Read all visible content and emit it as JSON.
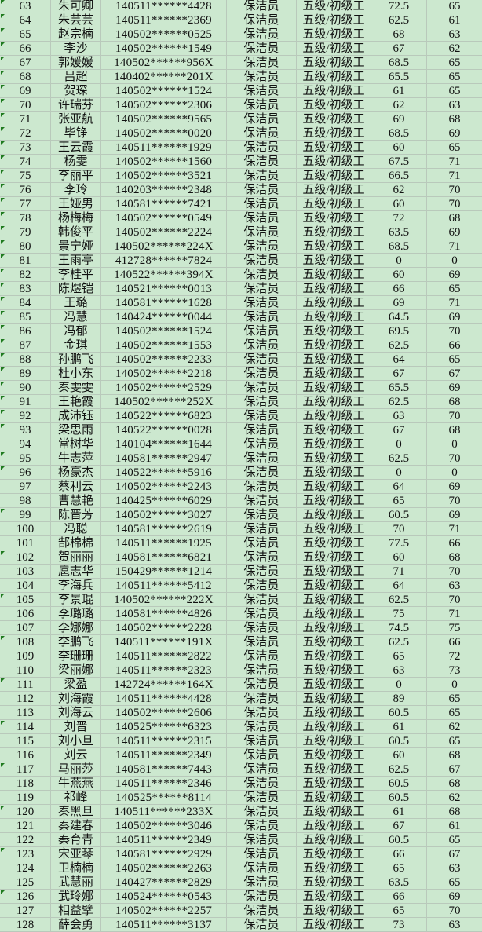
{
  "colors": {
    "cell_fill": "#cce8cf",
    "gridline": "#b9c9bb",
    "error_indicator": "#1f7a1f"
  },
  "rows": [
    {
      "no": "63",
      "name": "朱可卿",
      "id": "140511******4428",
      "job": "保洁员",
      "level": "五级/初级工",
      "score1": "72.5",
      "score2": "65",
      "marker": true
    },
    {
      "no": "64",
      "name": "朱芸芸",
      "id": "140511******2369",
      "job": "保洁员",
      "level": "五级/初级工",
      "score1": "62.5",
      "score2": "61",
      "marker": true
    },
    {
      "no": "65",
      "name": "赵宗楠",
      "id": "140502******0525",
      "job": "保洁员",
      "level": "五级/初级工",
      "score1": "68",
      "score2": "63",
      "marker": true
    },
    {
      "no": "66",
      "name": "李沙",
      "id": "140502******1549",
      "job": "保洁员",
      "level": "五级/初级工",
      "score1": "67",
      "score2": "62",
      "marker": true
    },
    {
      "no": "67",
      "name": "郭媛媛",
      "id": "140502******956X",
      "job": "保洁员",
      "level": "五级/初级工",
      "score1": "68.5",
      "score2": "65",
      "marker": true
    },
    {
      "no": "68",
      "name": "吕超",
      "id": "140402******201X",
      "job": "保洁员",
      "level": "五级/初级工",
      "score1": "65.5",
      "score2": "65",
      "marker": true
    },
    {
      "no": "69",
      "name": "贺琛",
      "id": "140502******1524",
      "job": "保洁员",
      "level": "五级/初级工",
      "score1": "61",
      "score2": "65",
      "marker": true
    },
    {
      "no": "70",
      "name": "许瑞芬",
      "id": "140502******2306",
      "job": "保洁员",
      "level": "五级/初级工",
      "score1": "62",
      "score2": "63",
      "marker": true
    },
    {
      "no": "71",
      "name": "张亚航",
      "id": "140502******9565",
      "job": "保洁员",
      "level": "五级/初级工",
      "score1": "69",
      "score2": "68",
      "marker": true
    },
    {
      "no": "72",
      "name": "毕铮",
      "id": "140502******0020",
      "job": "保洁员",
      "level": "五级/初级工",
      "score1": "68.5",
      "score2": "69",
      "marker": true
    },
    {
      "no": "73",
      "name": "王云霞",
      "id": "140511******1929",
      "job": "保洁员",
      "level": "五级/初级工",
      "score1": "60",
      "score2": "65",
      "marker": true
    },
    {
      "no": "74",
      "name": "杨雯",
      "id": "140502******1560",
      "job": "保洁员",
      "level": "五级/初级工",
      "score1": "67.5",
      "score2": "71",
      "marker": true
    },
    {
      "no": "75",
      "name": "李丽平",
      "id": "140502******3521",
      "job": "保洁员",
      "level": "五级/初级工",
      "score1": "66.5",
      "score2": "71",
      "marker": true
    },
    {
      "no": "76",
      "name": "李玲",
      "id": "140203******2348",
      "job": "保洁员",
      "level": "五级/初级工",
      "score1": "62",
      "score2": "70",
      "marker": true
    },
    {
      "no": "77",
      "name": "王娅男",
      "id": "140581******7421",
      "job": "保洁员",
      "level": "五级/初级工",
      "score1": "60",
      "score2": "70",
      "marker": true
    },
    {
      "no": "78",
      "name": "杨梅梅",
      "id": "140502******0549",
      "job": "保洁员",
      "level": "五级/初级工",
      "score1": "72",
      "score2": "68",
      "marker": true
    },
    {
      "no": "79",
      "name": "韩俊平",
      "id": "140502******2224",
      "job": "保洁员",
      "level": "五级/初级工",
      "score1": "63.5",
      "score2": "69",
      "marker": true
    },
    {
      "no": "80",
      "name": "景宁娅",
      "id": "140502******224X",
      "job": "保洁员",
      "level": "五级/初级工",
      "score1": "68.5",
      "score2": "71",
      "marker": true
    },
    {
      "no": "81",
      "name": "王雨亭",
      "id": "412728******7824",
      "job": "保洁员",
      "level": "五级/初级工",
      "score1": "0",
      "score2": "0",
      "marker": true
    },
    {
      "no": "82",
      "name": "李桂平",
      "id": "140522******394X",
      "job": "保洁员",
      "level": "五级/初级工",
      "score1": "60",
      "score2": "69",
      "marker": true
    },
    {
      "no": "83",
      "name": "陈煜铠",
      "id": "140521******0013",
      "job": "保洁员",
      "level": "五级/初级工",
      "score1": "66",
      "score2": "65",
      "marker": true
    },
    {
      "no": "84",
      "name": "王璐",
      "id": "140581******1628",
      "job": "保洁员",
      "level": "五级/初级工",
      "score1": "69",
      "score2": "71",
      "marker": true
    },
    {
      "no": "85",
      "name": "冯慧",
      "id": "140424******0044",
      "job": "保洁员",
      "level": "五级/初级工",
      "score1": "64.5",
      "score2": "69",
      "marker": true
    },
    {
      "no": "86",
      "name": "冯郁",
      "id": "140502******1524",
      "job": "保洁员",
      "level": "五级/初级工",
      "score1": "69.5",
      "score2": "70",
      "marker": true
    },
    {
      "no": "87",
      "name": "金琪",
      "id": "140502******1553",
      "job": "保洁员",
      "level": "五级/初级工",
      "score1": "62.5",
      "score2": "66",
      "marker": true
    },
    {
      "no": "88",
      "name": "孙鹏飞",
      "id": "140502******2233",
      "job": "保洁员",
      "level": "五级/初级工",
      "score1": "64",
      "score2": "65",
      "marker": true
    },
    {
      "no": "89",
      "name": "杜小东",
      "id": "140502******2218",
      "job": "保洁员",
      "level": "五级/初级工",
      "score1": "67",
      "score2": "67",
      "marker": true
    },
    {
      "no": "90",
      "name": "秦雯雯",
      "id": "140502******2529",
      "job": "保洁员",
      "level": "五级/初级工",
      "score1": "65.5",
      "score2": "69",
      "marker": true
    },
    {
      "no": "91",
      "name": "王艳霞",
      "id": "140502******252X",
      "job": "保洁员",
      "level": "五级/初级工",
      "score1": "62.5",
      "score2": "68",
      "marker": true
    },
    {
      "no": "92",
      "name": "成沛钰",
      "id": "140522******6823",
      "job": "保洁员",
      "level": "五级/初级工",
      "score1": "63",
      "score2": "70",
      "marker": true
    },
    {
      "no": "93",
      "name": "梁思雨",
      "id": "140522******0028",
      "job": "保洁员",
      "level": "五级/初级工",
      "score1": "67",
      "score2": "68",
      "marker": true
    },
    {
      "no": "94",
      "name": "常树华",
      "id": "140104******1644",
      "job": "保洁员",
      "level": "五级/初级工",
      "score1": "0",
      "score2": "0",
      "marker": false
    },
    {
      "no": "95",
      "name": "牛志萍",
      "id": "140581******2947",
      "job": "保洁员",
      "level": "五级/初级工",
      "score1": "62.5",
      "score2": "70",
      "marker": true
    },
    {
      "no": "96",
      "name": "杨豪杰",
      "id": "140522******5916",
      "job": "保洁员",
      "level": "五级/初级工",
      "score1": "0",
      "score2": "0",
      "marker": true
    },
    {
      "no": "97",
      "name": "蔡利云",
      "id": "140502******2243",
      "job": "保洁员",
      "level": "五级/初级工",
      "score1": "64",
      "score2": "69",
      "marker": false
    },
    {
      "no": "98",
      "name": "曹慧艳",
      "id": "140425******6029",
      "job": "保洁员",
      "level": "五级/初级工",
      "score1": "65",
      "score2": "70",
      "marker": false
    },
    {
      "no": "99",
      "name": "陈晋芳",
      "id": "140502******3027",
      "job": "保洁员",
      "level": "五级/初级工",
      "score1": "60.5",
      "score2": "69",
      "marker": true
    },
    {
      "no": "100",
      "name": "冯聪",
      "id": "140581******2619",
      "job": "保洁员",
      "level": "五级/初级工",
      "score1": "70",
      "score2": "71",
      "marker": false
    },
    {
      "no": "101",
      "name": "郜棉棉",
      "id": "140511******1925",
      "job": "保洁员",
      "level": "五级/初级工",
      "score1": "77.5",
      "score2": "66",
      "marker": false
    },
    {
      "no": "102",
      "name": "贺丽丽",
      "id": "140581******6821",
      "job": "保洁员",
      "level": "五级/初级工",
      "score1": "60",
      "score2": "68",
      "marker": true
    },
    {
      "no": "103",
      "name": "扈志华",
      "id": "150429******1214",
      "job": "保洁员",
      "level": "五级/初级工",
      "score1": "71",
      "score2": "70",
      "marker": false
    },
    {
      "no": "104",
      "name": "李海兵",
      "id": "140511******5412",
      "job": "保洁员",
      "level": "五级/初级工",
      "score1": "64",
      "score2": "63",
      "marker": false
    },
    {
      "no": "105",
      "name": "李景琨",
      "id": "140502******222X",
      "job": "保洁员",
      "level": "五级/初级工",
      "score1": "62.5",
      "score2": "70",
      "marker": true
    },
    {
      "no": "106",
      "name": "李璐璐",
      "id": "140581******4826",
      "job": "保洁员",
      "level": "五级/初级工",
      "score1": "75",
      "score2": "71",
      "marker": false
    },
    {
      "no": "107",
      "name": "李娜娜",
      "id": "140502******2228",
      "job": "保洁员",
      "level": "五级/初级工",
      "score1": "74.5",
      "score2": "75",
      "marker": false
    },
    {
      "no": "108",
      "name": "李鹏飞",
      "id": "140511******191X",
      "job": "保洁员",
      "level": "五级/初级工",
      "score1": "62.5",
      "score2": "66",
      "marker": true
    },
    {
      "no": "109",
      "name": "李珊珊",
      "id": "140511******2822",
      "job": "保洁员",
      "level": "五级/初级工",
      "score1": "65",
      "score2": "72",
      "marker": false
    },
    {
      "no": "110",
      "name": "梁丽娜",
      "id": "140511******2323",
      "job": "保洁员",
      "level": "五级/初级工",
      "score1": "63",
      "score2": "73",
      "marker": false
    },
    {
      "no": "111",
      "name": "梁盈",
      "id": "142724******164X",
      "job": "保洁员",
      "level": "五级/初级工",
      "score1": "0",
      "score2": "0",
      "marker": true
    },
    {
      "no": "112",
      "name": "刘海霞",
      "id": "140511******4428",
      "job": "保洁员",
      "level": "五级/初级工",
      "score1": "89",
      "score2": "65",
      "marker": false
    },
    {
      "no": "113",
      "name": "刘海云",
      "id": "140502******2606",
      "job": "保洁员",
      "level": "五级/初级工",
      "score1": "60.5",
      "score2": "65",
      "marker": false
    },
    {
      "no": "114",
      "name": "刘晋",
      "id": "140525******6323",
      "job": "保洁员",
      "level": "五级/初级工",
      "score1": "61",
      "score2": "62",
      "marker": true
    },
    {
      "no": "115",
      "name": "刘小旦",
      "id": "140511******2315",
      "job": "保洁员",
      "level": "五级/初级工",
      "score1": "60.5",
      "score2": "65",
      "marker": false
    },
    {
      "no": "116",
      "name": "刘云",
      "id": "140511******2349",
      "job": "保洁员",
      "level": "五级/初级工",
      "score1": "60",
      "score2": "68",
      "marker": false
    },
    {
      "no": "117",
      "name": "马丽莎",
      "id": "140581******7443",
      "job": "保洁员",
      "level": "五级/初级工",
      "score1": "62.5",
      "score2": "67",
      "marker": true
    },
    {
      "no": "118",
      "name": "牛燕燕",
      "id": "140511******2346",
      "job": "保洁员",
      "level": "五级/初级工",
      "score1": "60.5",
      "score2": "68",
      "marker": false
    },
    {
      "no": "119",
      "name": "祁峰",
      "id": "140525******8114",
      "job": "保洁员",
      "level": "五级/初级工",
      "score1": "60.5",
      "score2": "62",
      "marker": false
    },
    {
      "no": "120",
      "name": "秦黑旦",
      "id": "140511******233X",
      "job": "保洁员",
      "level": "五级/初级工",
      "score1": "61",
      "score2": "68",
      "marker": true
    },
    {
      "no": "121",
      "name": "秦建春",
      "id": "140502******3046",
      "job": "保洁员",
      "level": "五级/初级工",
      "score1": "67",
      "score2": "61",
      "marker": false
    },
    {
      "no": "122",
      "name": "秦育青",
      "id": "140511******2349",
      "job": "保洁员",
      "level": "五级/初级工",
      "score1": "60.5",
      "score2": "65",
      "marker": false
    },
    {
      "no": "123",
      "name": "宋亚琴",
      "id": "140581******2929",
      "job": "保洁员",
      "level": "五级/初级工",
      "score1": "66",
      "score2": "67",
      "marker": true
    },
    {
      "no": "124",
      "name": "卫楠楠",
      "id": "140502******2263",
      "job": "保洁员",
      "level": "五级/初级工",
      "score1": "65",
      "score2": "63",
      "marker": false
    },
    {
      "no": "125",
      "name": "武慧丽",
      "id": "140427******2829",
      "job": "保洁员",
      "level": "五级/初级工",
      "score1": "63.5",
      "score2": "65",
      "marker": false
    },
    {
      "no": "126",
      "name": "武玲娜",
      "id": "140524******0543",
      "job": "保洁员",
      "level": "五级/初级工",
      "score1": "66",
      "score2": "69",
      "marker": true
    },
    {
      "no": "127",
      "name": "相益擘",
      "id": "140502******2257",
      "job": "保洁员",
      "level": "五级/初级工",
      "score1": "65",
      "score2": "70",
      "marker": false
    },
    {
      "no": "128",
      "name": "薛会勇",
      "id": "140511******3137",
      "job": "保洁员",
      "level": "五级/初级工",
      "score1": "73",
      "score2": "63",
      "marker": false
    }
  ]
}
